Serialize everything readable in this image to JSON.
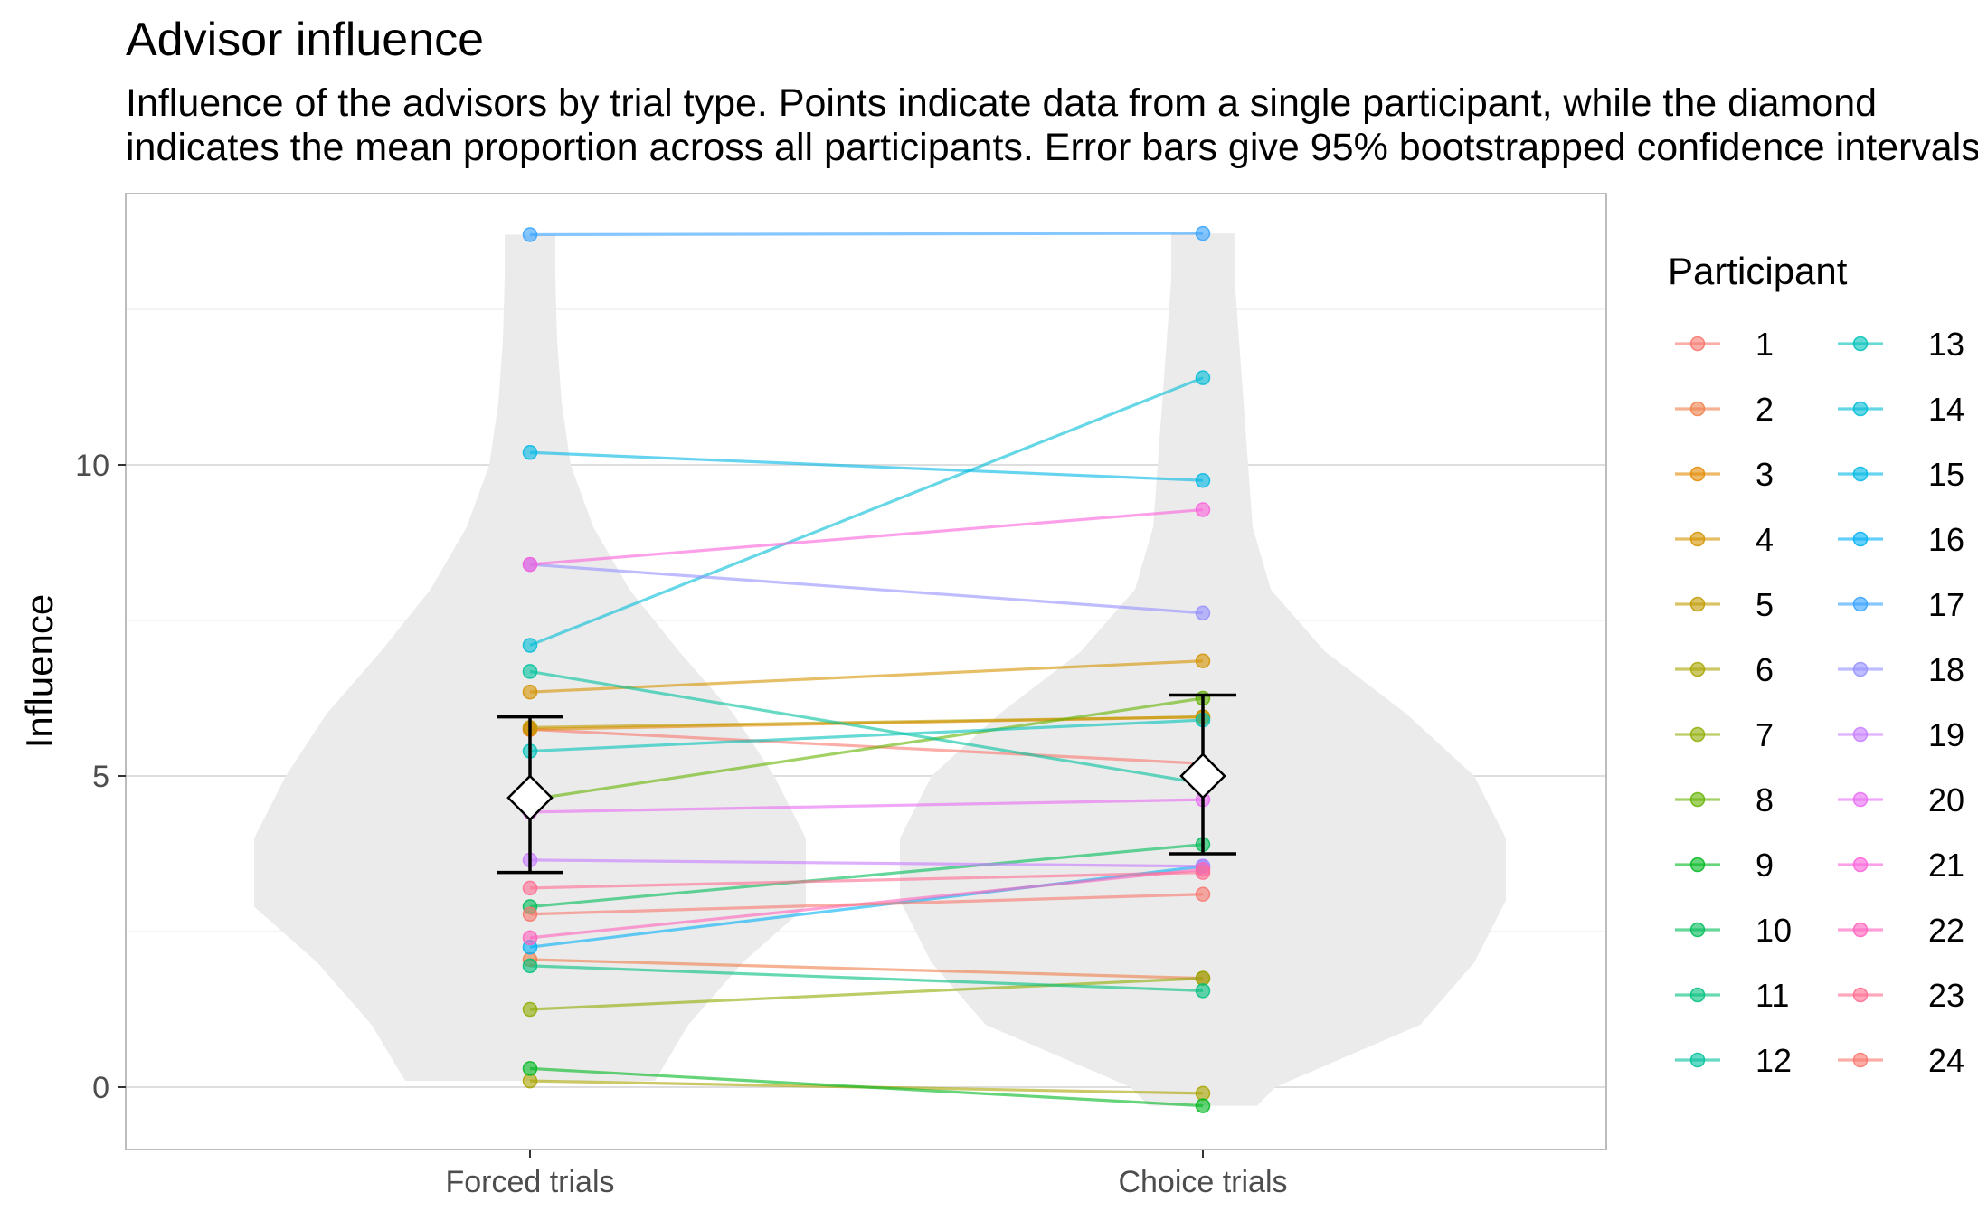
{
  "title": "Advisor influence",
  "subtitle": "Influence of the advisors by trial type. Points indicate data from a single participant, while the diamond\nindicates the mean proportion across all participants. Error bars give 95% bootstrapped confidence intervals.",
  "chart_data": {
    "type": "line",
    "categories": [
      "Forced trials",
      "Choice trials"
    ],
    "ylabel": "Influence",
    "xlabel": "",
    "ylim": [
      -1,
      14.4
    ],
    "yticks": [
      0,
      5,
      10
    ],
    "grid": true,
    "legend_title": "Participant",
    "legend_placement": "right",
    "series": [
      {
        "name": "1",
        "color": "#F8766D",
        "values": [
          5.75,
          5.2
        ]
      },
      {
        "name": "2",
        "color": "#EF7F49",
        "values": [
          2.05,
          1.75
        ]
      },
      {
        "name": "3",
        "color": "#E38900",
        "values": [
          5.75,
          5.95
        ]
      },
      {
        "name": "4",
        "color": "#D39200",
        "values": [
          6.35,
          6.85
        ]
      },
      {
        "name": "5",
        "color": "#C09B00",
        "values": [
          5.78,
          5.95
        ]
      },
      {
        "name": "6",
        "color": "#A9A400",
        "values": [
          0.1,
          -0.1
        ]
      },
      {
        "name": "7",
        "color": "#8EAB00",
        "values": [
          1.25,
          1.75
        ]
      },
      {
        "name": "8",
        "color": "#64B200",
        "values": [
          4.62,
          6.25
        ]
      },
      {
        "name": "9",
        "color": "#00B81F",
        "values": [
          0.3,
          -0.3
        ]
      },
      {
        "name": "10",
        "color": "#00BC59",
        "values": [
          2.9,
          3.9
        ]
      },
      {
        "name": "11",
        "color": "#00BF7D",
        "values": [
          1.95,
          1.55
        ]
      },
      {
        "name": "12",
        "color": "#00C19C",
        "values": [
          6.68,
          4.88
        ]
      },
      {
        "name": "13",
        "color": "#00C1B8",
        "values": [
          5.4,
          5.9
        ]
      },
      {
        "name": "14",
        "color": "#00BCD6",
        "values": [
          7.1,
          11.4
        ]
      },
      {
        "name": "15",
        "color": "#00B8E5",
        "values": [
          10.2,
          9.75
        ]
      },
      {
        "name": "16",
        "color": "#00B0F6",
        "values": [
          2.25,
          3.55
        ]
      },
      {
        "name": "17",
        "color": "#35A2FF",
        "values": [
          13.7,
          13.72
        ]
      },
      {
        "name": "18",
        "color": "#9590FF",
        "values": [
          8.4,
          7.62
        ]
      },
      {
        "name": "19",
        "color": "#C77CFF",
        "values": [
          3.65,
          3.55
        ]
      },
      {
        "name": "20",
        "color": "#E76BF3",
        "values": [
          4.42,
          4.62
        ]
      },
      {
        "name": "21",
        "color": "#FA62DB",
        "values": [
          8.4,
          9.28
        ]
      },
      {
        "name": "22",
        "color": "#FF62BC",
        "values": [
          2.4,
          3.5
        ]
      },
      {
        "name": "23",
        "color": "#FF6C91",
        "values": [
          3.2,
          3.45
        ]
      },
      {
        "name": "24",
        "color": "#F8766D",
        "values": [
          2.78,
          3.1
        ]
      }
    ],
    "summary": [
      {
        "category": "Forced trials",
        "mean": 4.65,
        "ci": [
          3.45,
          5.95
        ]
      },
      {
        "category": "Choice trials",
        "mean": 5.0,
        "ci": [
          3.75,
          6.3
        ]
      }
    ]
  }
}
